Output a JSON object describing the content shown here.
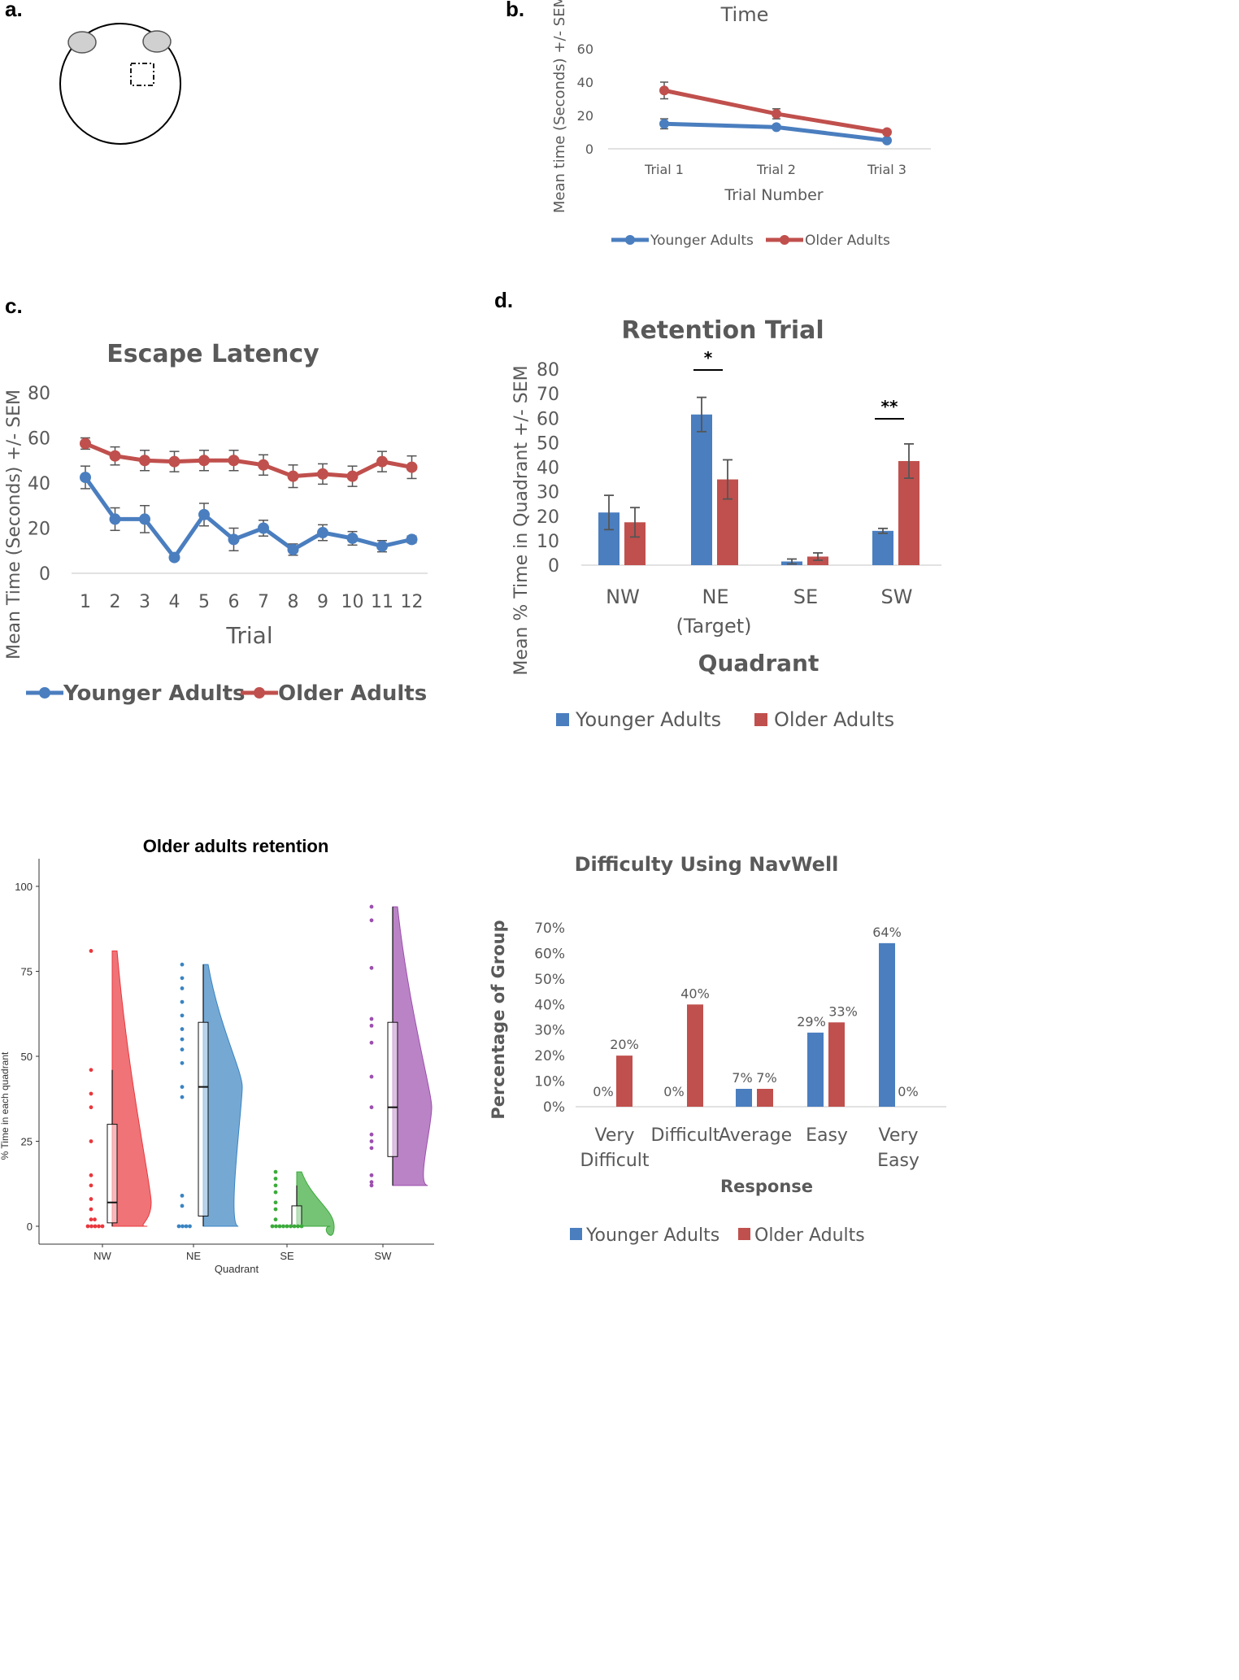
{
  "panel_labels": {
    "a": "a.",
    "b": "b.",
    "c": "c.",
    "d": "d."
  },
  "chart_data": [
    {
      "id": "b",
      "type": "line",
      "title": "Time",
      "xlabel": "Trial Number",
      "ylabel": "Mean time (Seconds) +/- SEM",
      "categories": [
        "Trial 1",
        "Trial 2",
        "Trial 3"
      ],
      "yticks": [
        "0",
        "20",
        "40",
        "60"
      ],
      "ylim": [
        0,
        60
      ],
      "series": [
        {
          "name": "Younger Adults",
          "color": "#4a7ebf",
          "values": [
            15,
            13,
            5
          ],
          "err": [
            3,
            1,
            1
          ]
        },
        {
          "name": "Older Adults",
          "color": "#c0504d",
          "values": [
            35,
            21,
            10
          ],
          "err": [
            5,
            3,
            1
          ]
        }
      ]
    },
    {
      "id": "c",
      "type": "line",
      "title": "Escape Latency",
      "xlabel": "Trial",
      "ylabel": "Mean Time (Seconds) +/- SEM",
      "categories": [
        "1",
        "2",
        "3",
        "4",
        "5",
        "6",
        "7",
        "8",
        "9",
        "10",
        "11",
        "12"
      ],
      "yticks": [
        "0",
        "20",
        "40",
        "60",
        "80"
      ],
      "ylim": [
        0,
        80
      ],
      "series": [
        {
          "name": "Younger Adults",
          "color": "#4a7ebf",
          "values": [
            42.5,
            24,
            24,
            7,
            26,
            15,
            20,
            10.5,
            18,
            15.5,
            12,
            15
          ],
          "err": [
            5,
            5,
            6,
            1,
            5,
            5,
            3.5,
            2.5,
            3.5,
            3,
            2.5,
            1.5
          ]
        },
        {
          "name": "Older Adults",
          "color": "#c0504d",
          "values": [
            57.5,
            52,
            50,
            49.5,
            50,
            50,
            48,
            43,
            44,
            43,
            49.5,
            47
          ],
          "err": [
            2.5,
            4,
            4.5,
            4.5,
            4.5,
            4.5,
            4.5,
            5,
            4.5,
            4.5,
            4.5,
            5
          ]
        }
      ]
    },
    {
      "id": "d",
      "type": "bar",
      "title": "Retention Trial",
      "xlabel": "Quadrant",
      "ylabel": "Mean % Time in Quadrant +/- SEM",
      "categories": [
        "NW",
        "NE",
        "SE",
        "SW"
      ],
      "category_sublabels": [
        "",
        "(Target)",
        "",
        ""
      ],
      "yticks": [
        "0",
        "10",
        "20",
        "30",
        "40",
        "50",
        "60",
        "70",
        "80"
      ],
      "ylim": [
        0,
        80
      ],
      "series": [
        {
          "name": "Younger Adults",
          "color": "#4a7ebf",
          "values": [
            21.5,
            61.5,
            1.5,
            14
          ],
          "err": [
            7,
            7,
            1,
            1
          ]
        },
        {
          "name": "Older Adults",
          "color": "#c0504d",
          "values": [
            17.5,
            35,
            3.5,
            42.5
          ],
          "err": [
            6,
            8,
            1.5,
            7
          ]
        }
      ],
      "annotations": [
        {
          "category": "NE",
          "text": "*"
        },
        {
          "category": "SW",
          "text": "**"
        }
      ]
    },
    {
      "id": "e",
      "type": "raincloud",
      "title": "Older adults retention",
      "xlabel": "Quadrant",
      "ylabel": "% Time in each quadrant",
      "categories": [
        "NW",
        "NE",
        "SE",
        "SW"
      ],
      "yticks": [
        "0",
        "25",
        "50",
        "75",
        "100"
      ],
      "ylim": [
        0,
        100
      ],
      "groups": [
        {
          "name": "NW",
          "color": "#e8383d",
          "points": [
            81,
            46,
            39,
            35,
            25,
            15,
            12,
            8,
            5,
            2,
            2,
            0,
            0,
            0,
            0,
            0
          ],
          "q1": 1,
          "median": 7,
          "q3": 30,
          "whisker_low": 0,
          "whisker_high": 46
        },
        {
          "name": "NE",
          "color": "#3a84c2",
          "points": [
            77,
            73,
            70,
            66,
            62,
            58,
            55,
            52,
            48,
            41,
            38,
            9,
            6,
            0,
            0,
            0,
            0
          ],
          "q1": 3,
          "median": 41,
          "q3": 60,
          "whisker_low": 0,
          "whisker_high": 77
        },
        {
          "name": "SE",
          "color": "#3aaa3a",
          "points": [
            16,
            14,
            12,
            10,
            7,
            5,
            2,
            0,
            0,
            0,
            0,
            0,
            0,
            0,
            0,
            0
          ],
          "q1": 0,
          "median": 0,
          "q3": 6,
          "whisker_low": 0,
          "whisker_high": 12
        },
        {
          "name": "SW",
          "color": "#9c4fae",
          "points": [
            94,
            90,
            76,
            61,
            59,
            54,
            44,
            35,
            27,
            25,
            23,
            15,
            13,
            12
          ],
          "q1": 20.5,
          "median": 35,
          "q3": 60,
          "whisker_low": 12,
          "whisker_high": 94
        }
      ]
    },
    {
      "id": "f",
      "type": "bar",
      "title": "Difficulty Using NavWell",
      "xlabel": "Response",
      "ylabel": "Percentage of Group",
      "categories": [
        [
          "Very",
          "Difficult"
        ],
        [
          "Difficult"
        ],
        [
          "Average"
        ],
        [
          "Easy"
        ],
        [
          "Very",
          "Easy"
        ]
      ],
      "yticks": [
        "0%",
        "10%",
        "20%",
        "30%",
        "40%",
        "50%",
        "60%",
        "70%"
      ],
      "ylim": [
        0,
        70
      ],
      "series": [
        {
          "name": "Younger Adults",
          "color": "#4a7ebf",
          "values": [
            0,
            0,
            7,
            29,
            64
          ],
          "labels": [
            "0%",
            "0%",
            "7%",
            "29%",
            "64%"
          ]
        },
        {
          "name": "Older Adults",
          "color": "#c0504d",
          "values": [
            20,
            40,
            7,
            33,
            0
          ],
          "labels": [
            "20%",
            "40%",
            "7%",
            "33%",
            "0%"
          ]
        }
      ]
    }
  ]
}
